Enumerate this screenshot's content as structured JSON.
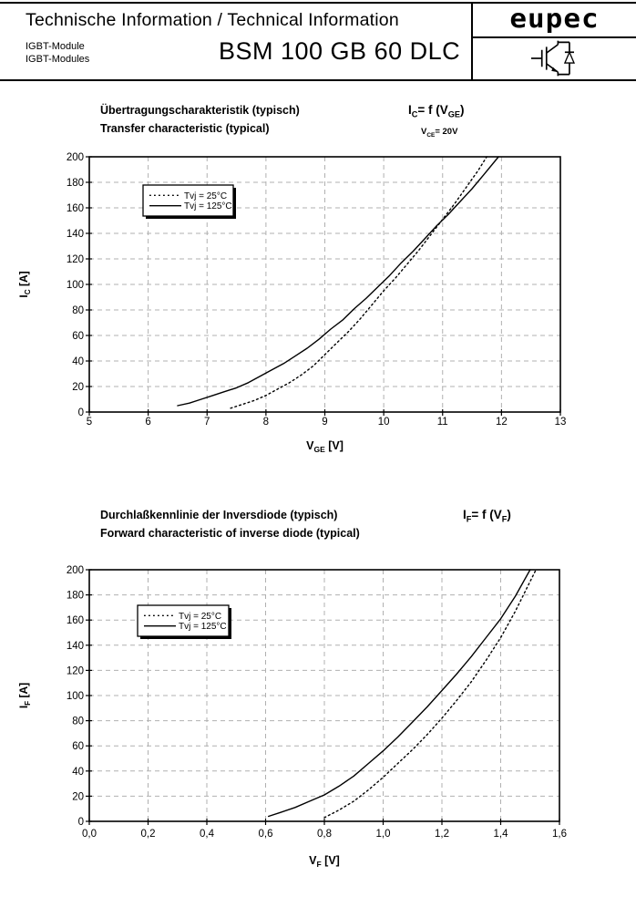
{
  "header": {
    "title": "Technische Information / Technical Information",
    "subtitle_de": "IGBT-Module",
    "subtitle_en": "IGBT-Modules",
    "part_number": "BSM 100 GB 60 DLC",
    "brand": "eupec",
    "logo_symbol": "igbt-with-antiparallel-diode"
  },
  "colors": {
    "ink": "#000000",
    "grid": "#b0b0b0",
    "background": "#ffffff"
  },
  "chart_data": [
    {
      "type": "line",
      "title_de": "Übertragungscharakteristik (typisch)",
      "title_en": "Transfer characteristic (typical)",
      "formula": "I_{C}= f (V_{GE})",
      "condition": "V_{CE}= 20V",
      "xlabel": "V_{GE} [V]",
      "ylabel": "I_{C} [A]",
      "xlim": [
        5,
        13
      ],
      "ylim": [
        0,
        200
      ],
      "x_tick_values": [
        5,
        6,
        7,
        8,
        9,
        10,
        11,
        12,
        13
      ],
      "x_tick_labels": [
        "5",
        "6",
        "7",
        "8",
        "9",
        "10",
        "11",
        "12",
        "13"
      ],
      "y_tick_values": [
        0,
        20,
        40,
        60,
        80,
        100,
        120,
        140,
        160,
        180,
        200
      ],
      "y_tick_labels": [
        "0",
        "20",
        "40",
        "60",
        "80",
        "100",
        "120",
        "140",
        "160",
        "180",
        "200"
      ],
      "grid": "dashed",
      "legend": {
        "position": "upper-left-inside",
        "entries": [
          {
            "label": "Tvj = 25°C",
            "style": "dotted"
          },
          {
            "label": "Tvj = 125°C",
            "style": "solid"
          }
        ]
      },
      "series": [
        {
          "name": "Tvj = 25°C",
          "style": "dotted",
          "points": [
            [
              7.4,
              3
            ],
            [
              7.6,
              6
            ],
            [
              7.8,
              9
            ],
            [
              8,
              13
            ],
            [
              8.2,
              18
            ],
            [
              8.4,
              23
            ],
            [
              8.6,
              29
            ],
            [
              8.8,
              36
            ],
            [
              9,
              45
            ],
            [
              9.2,
              54
            ],
            [
              9.4,
              63
            ],
            [
              9.6,
              73
            ],
            [
              9.8,
              84
            ],
            [
              10,
              95
            ],
            [
              10.2,
              105
            ],
            [
              10.4,
              116
            ],
            [
              10.6,
              127
            ],
            [
              10.8,
              139
            ],
            [
              11,
              151
            ],
            [
              11.2,
              163
            ],
            [
              11.4,
              176
            ],
            [
              11.6,
              189
            ],
            [
              11.75,
              200
            ]
          ]
        },
        {
          "name": "Tvj = 125°C",
          "style": "solid",
          "points": [
            [
              6.5,
              5
            ],
            [
              6.7,
              7
            ],
            [
              6.9,
              10
            ],
            [
              7.1,
              13
            ],
            [
              7.3,
              16
            ],
            [
              7.5,
              19
            ],
            [
              7.7,
              23
            ],
            [
              7.9,
              28
            ],
            [
              8.1,
              33
            ],
            [
              8.3,
              38
            ],
            [
              8.5,
              44
            ],
            [
              8.7,
              50
            ],
            [
              8.9,
              57
            ],
            [
              9.1,
              65
            ],
            [
              9.3,
              72
            ],
            [
              9.5,
              81
            ],
            [
              9.7,
              89
            ],
            [
              9.9,
              98
            ],
            [
              10.1,
              107
            ],
            [
              10.3,
              117
            ],
            [
              10.5,
              126
            ],
            [
              10.7,
              136
            ],
            [
              10.9,
              146
            ],
            [
              11.1,
              155
            ],
            [
              11.3,
              165
            ],
            [
              11.5,
              175
            ],
            [
              11.7,
              186
            ],
            [
              11.95,
              200
            ]
          ]
        }
      ]
    },
    {
      "type": "line",
      "title_de": "Durchlaßkennlinie der Inversdiode (typisch)",
      "title_en": "Forward characteristic of inverse diode (typical)",
      "formula": "I_{F}= f (V_{F})",
      "xlabel": "V_{F} [V]",
      "ylabel": "I_{F} [A]",
      "xlim": [
        0,
        1.6
      ],
      "ylim": [
        0,
        200
      ],
      "x_tick_values": [
        0,
        0.2,
        0.4,
        0.6,
        0.8,
        1,
        1.2,
        1.4,
        1.6
      ],
      "x_tick_labels": [
        "0,0",
        "0,2",
        "0,4",
        "0,6",
        "0,8",
        "1,0",
        "1,2",
        "1,4",
        "1,6"
      ],
      "y_tick_values": [
        0,
        20,
        40,
        60,
        80,
        100,
        120,
        140,
        160,
        180,
        200
      ],
      "y_tick_labels": [
        "0",
        "20",
        "40",
        "60",
        "80",
        "100",
        "120",
        "140",
        "160",
        "180",
        "200"
      ],
      "grid": "dashed",
      "legend": {
        "position": "upper-left-inside",
        "entries": [
          {
            "label": "Tvj = 25°C",
            "style": "dotted"
          },
          {
            "label": "Tvj = 125°C",
            "style": "solid"
          }
        ]
      },
      "series": [
        {
          "name": "Tvj = 25°C",
          "style": "dotted",
          "points": [
            [
              0.8,
              3
            ],
            [
              0.85,
              9
            ],
            [
              0.9,
              16
            ],
            [
              0.95,
              25
            ],
            [
              1,
              35
            ],
            [
              1.05,
              46
            ],
            [
              1.1,
              57
            ],
            [
              1.15,
              69
            ],
            [
              1.2,
              82
            ],
            [
              1.25,
              96
            ],
            [
              1.3,
              111
            ],
            [
              1.35,
              128
            ],
            [
              1.4,
              146
            ],
            [
              1.45,
              167
            ],
            [
              1.52,
              200
            ]
          ]
        },
        {
          "name": "Tvj = 125°C",
          "style": "solid",
          "points": [
            [
              0.61,
              4
            ],
            [
              0.65,
              7
            ],
            [
              0.7,
              11
            ],
            [
              0.75,
              16
            ],
            [
              0.8,
              21
            ],
            [
              0.85,
              28
            ],
            [
              0.9,
              36
            ],
            [
              0.95,
              46
            ],
            [
              1,
              56
            ],
            [
              1.05,
              67
            ],
            [
              1.1,
              79
            ],
            [
              1.15,
              91
            ],
            [
              1.2,
              104
            ],
            [
              1.25,
              117
            ],
            [
              1.3,
              131
            ],
            [
              1.35,
              146
            ],
            [
              1.4,
              161
            ],
            [
              1.45,
              179
            ],
            [
              1.5,
              200
            ]
          ]
        }
      ]
    }
  ]
}
